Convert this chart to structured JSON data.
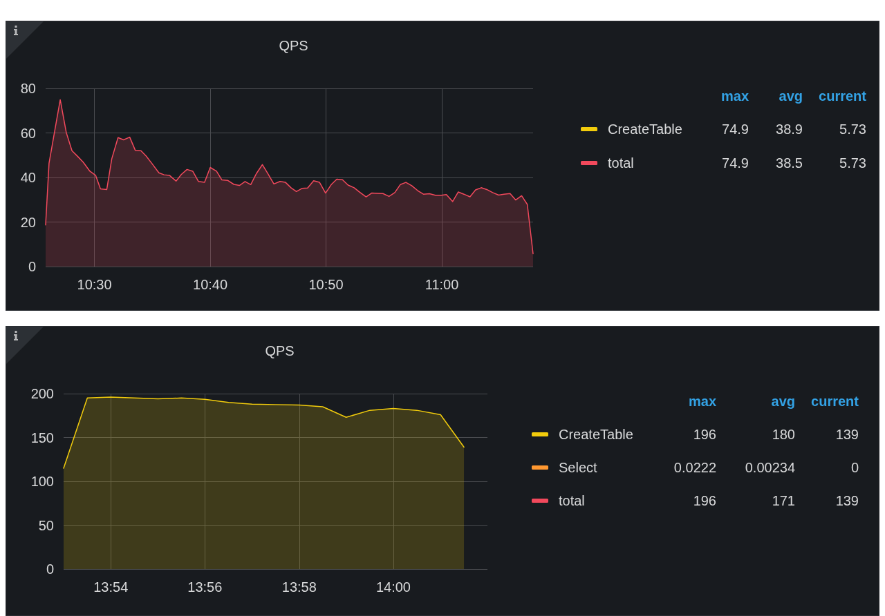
{
  "chart_data": [
    {
      "type": "area",
      "title": "QPS",
      "legend": "right",
      "grid": true,
      "marker": "none",
      "line_style": "solid",
      "x": [
        10.4298,
        10.4347,
        10.4433,
        10.4508,
        10.4595,
        10.4677,
        10.4758,
        10.4838,
        10.4935,
        10.5017,
        10.5087,
        10.5178,
        10.525,
        10.534,
        10.542,
        10.5508,
        10.5588,
        10.567,
        10.5745,
        10.5825,
        10.5928,
        10.6003,
        10.6083,
        10.6175,
        10.6252,
        10.6333,
        10.6415,
        10.6498,
        10.6585,
        10.6667,
        10.6757,
        10.6835,
        10.6917,
        10.7007,
        10.7087,
        10.7168,
        10.725,
        10.733,
        10.7417,
        10.7502,
        10.7583,
        10.767,
        10.775,
        10.7832,
        10.7907,
        10.7987,
        10.8068,
        10.8155,
        10.824,
        10.8327,
        10.8408,
        10.8488,
        10.857,
        10.865,
        10.8738,
        10.8822,
        10.891,
        10.899,
        10.9072,
        10.9152,
        10.924,
        10.9323,
        10.9402,
        10.9483,
        10.9567,
        10.9653,
        10.9735,
        10.9822,
        10.9907,
        10.9993,
        11.0065,
        11.0155,
        11.0237,
        11.0317,
        11.0405,
        11.0485,
        11.0567,
        11.0647,
        11.0732,
        11.0818,
        11.0893,
        11.0982,
        11.1062,
        11.1148,
        11.123,
        11.1313
      ],
      "xlim": [
        10.4298,
        11.1313
      ],
      "xticks": [
        {
          "value": 10.5,
          "label": "10:30"
        },
        {
          "value": 10.6667,
          "label": "10:40"
        },
        {
          "value": 10.8333,
          "label": "10:50"
        },
        {
          "value": 11.0,
          "label": "11:00"
        }
      ],
      "ylim": [
        0,
        80
      ],
      "yticks": [
        0,
        20,
        40,
        60,
        80
      ],
      "series": [
        {
          "name": "CreateTable",
          "color": "#f2cc0c",
          "values": [
            null,
            null,
            null,
            null,
            null,
            null,
            null,
            null,
            null,
            null,
            null,
            null,
            null,
            null,
            null,
            null,
            null,
            null,
            null,
            null,
            null,
            null,
            null,
            null,
            null,
            null,
            null,
            null,
            null,
            null,
            null,
            null,
            null,
            null,
            null,
            null,
            null,
            null,
            null,
            null,
            null,
            null,
            null,
            null,
            null,
            null,
            null,
            null,
            null,
            null,
            null,
            null,
            null,
            null,
            null,
            null,
            null,
            null,
            null,
            null,
            null,
            null,
            null,
            null,
            null,
            null,
            null,
            null,
            null,
            null,
            null,
            null,
            null,
            null,
            null,
            null,
            null,
            null,
            null,
            null,
            null,
            null,
            null,
            null,
            null,
            null
          ]
        },
        {
          "name": "total",
          "color": "#f2495c",
          "values": [
            18.7,
            46.4,
            61.7,
            74.9,
            60.2,
            52,
            49.5,
            46.9,
            42.8,
            41,
            34.9,
            34.6,
            48.4,
            57.9,
            56.9,
            58.1,
            52.2,
            52,
            49.6,
            46.4,
            42.1,
            41.2,
            40.9,
            38.4,
            41.4,
            43.6,
            42.8,
            38.2,
            37.8,
            44.5,
            42.8,
            38.9,
            38.7,
            36.9,
            36.4,
            38.2,
            36.8,
            41.7,
            45.8,
            41.4,
            37.1,
            38.2,
            37.8,
            35.3,
            33.7,
            35.1,
            35.3,
            38.5,
            37.8,
            33.0,
            36.8,
            39.2,
            39.0,
            36.6,
            35.4,
            33.3,
            31.3,
            33.0,
            32.9,
            32.8,
            31.5,
            33.2,
            36.8,
            37.8,
            36.3,
            34.1,
            32.5,
            32.7,
            32.0,
            32.0,
            32.3,
            29.2,
            33.5,
            32.5,
            31.3,
            34.4,
            35.4,
            34.6,
            33.2,
            32.1,
            32.5,
            32.8,
            29.9,
            31.8,
            27.9,
            5.73
          ]
        }
      ],
      "annotations": [
        "max",
        "avg",
        "current",
        "74.9",
        "38.9",
        "5.73",
        "74.9",
        "38.5",
        "5.73"
      ]
    },
    {
      "type": "area",
      "title": "QPS",
      "legend": "right",
      "grid": true,
      "marker": "none",
      "line_style": "solid",
      "x": [
        13.8833,
        13.8917,
        13.9,
        13.9083,
        13.9167,
        13.925,
        13.9333,
        13.9417,
        13.95,
        13.9583,
        13.9667,
        13.975,
        13.9833,
        13.9917,
        14.0,
        14.0083,
        14.0167,
        14.025
      ],
      "xlim": [
        13.8833,
        14.0333
      ],
      "xticks": [
        {
          "value": 13.9,
          "label": "13:54"
        },
        {
          "value": 13.9333,
          "label": "13:56"
        },
        {
          "value": 13.9667,
          "label": "13:58"
        },
        {
          "value": 14.0,
          "label": "14:00"
        }
      ],
      "ylim": [
        0,
        200
      ],
      "yticks": [
        0,
        50,
        100,
        150,
        200
      ],
      "series": [
        {
          "name": "CreateTable",
          "color": "#f2cc0c",
          "values": [
            115,
            195,
            196,
            195,
            194,
            195,
            193.5,
            190,
            188,
            187.5,
            187,
            185,
            173,
            181,
            183,
            181,
            176,
            139
          ]
        },
        {
          "name": "Select",
          "color": "#ff9830",
          "values": [
            null,
            null,
            null,
            null,
            null,
            null,
            null,
            null,
            null,
            null,
            null,
            null,
            null,
            null,
            null,
            null,
            null,
            null
          ]
        },
        {
          "name": "total",
          "color": "#f2495c",
          "values": [
            null,
            null,
            null,
            null,
            null,
            null,
            null,
            null,
            null,
            null,
            null,
            null,
            null,
            null,
            null,
            null,
            null,
            null
          ]
        }
      ],
      "annotations": [
        "max",
        "avg",
        "current",
        "196",
        "180",
        "139",
        "0.0222",
        "0.00234",
        "0",
        "196",
        "171",
        "139"
      ]
    }
  ]
}
